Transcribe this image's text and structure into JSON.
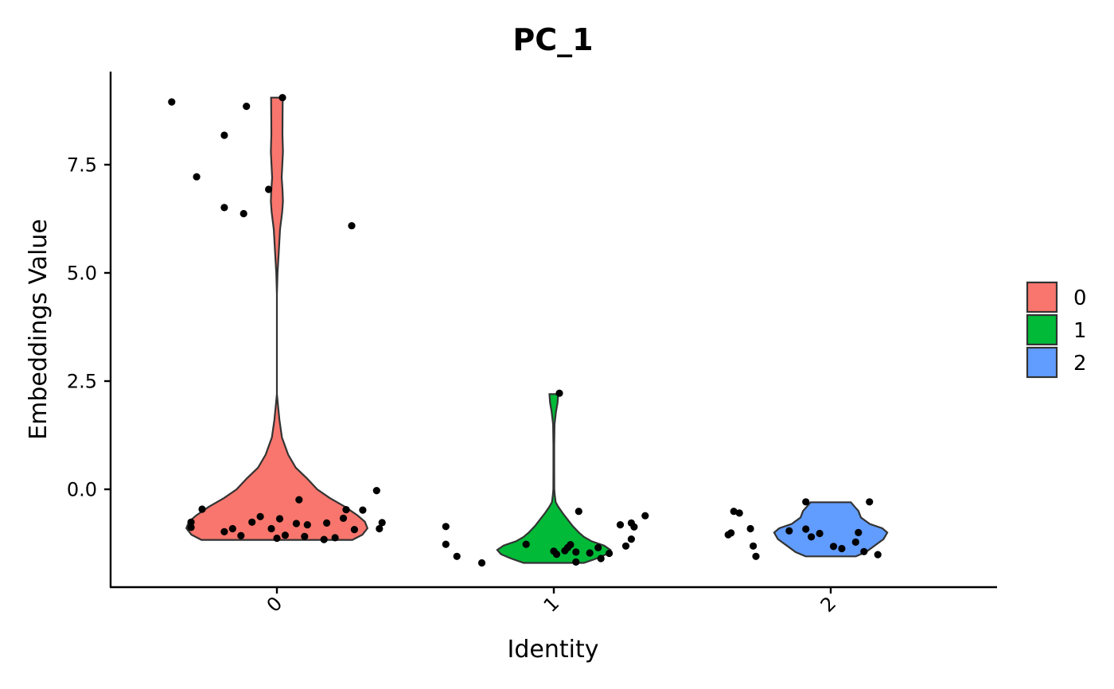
{
  "chart_data": {
    "type": "violin",
    "title": "PC_1",
    "xlabel": "Identity",
    "ylabel": "Embeddings Value",
    "categories": [
      "0",
      "1",
      "2"
    ],
    "ylim": [
      -2.2,
      9.7
    ],
    "yticks": [
      0.0,
      2.5,
      5.0,
      7.5
    ],
    "ytick_labels": [
      "0.0",
      "2.5",
      "5.0",
      "7.5"
    ],
    "grid": false,
    "legend_position": "right",
    "legend": [
      {
        "label": "0",
        "color": "#F8766D"
      },
      {
        "label": "1",
        "color": "#00BA38"
      },
      {
        "label": "2",
        "color": "#619CFF"
      }
    ],
    "series": [
      {
        "category": "0",
        "color": "#F8766D",
        "min": -1.17,
        "max": 9.05,
        "density": [
          [
            -1.17,
            0.6
          ],
          [
            -1.05,
            0.68
          ],
          [
            -0.9,
            0.72
          ],
          [
            -0.75,
            0.7
          ],
          [
            -0.6,
            0.64
          ],
          [
            -0.4,
            0.54
          ],
          [
            -0.2,
            0.42
          ],
          [
            0.0,
            0.32
          ],
          [
            0.25,
            0.24
          ],
          [
            0.5,
            0.15
          ],
          [
            0.8,
            0.09
          ],
          [
            1.2,
            0.04
          ],
          [
            1.6,
            0.02
          ],
          [
            2.2,
            0.0
          ],
          [
            4.5,
            0.0
          ],
          [
            5.0,
            0.005
          ],
          [
            5.5,
            0.015
          ],
          [
            6.0,
            0.025
          ],
          [
            6.4,
            0.042
          ],
          [
            6.65,
            0.048
          ],
          [
            6.9,
            0.045
          ],
          [
            7.2,
            0.038
          ],
          [
            7.5,
            0.043
          ],
          [
            7.8,
            0.048
          ],
          [
            8.2,
            0.044
          ],
          [
            8.6,
            0.045
          ],
          [
            9.05,
            0.046
          ]
        ],
        "points": [
          [
            -0.38,
            8.95
          ],
          [
            -0.19,
            8.18
          ],
          [
            -0.11,
            8.85
          ],
          [
            0.02,
            9.05
          ],
          [
            -0.29,
            7.22
          ],
          [
            -0.03,
            6.93
          ],
          [
            -0.19,
            6.51
          ],
          [
            -0.12,
            6.37
          ],
          [
            0.27,
            6.09
          ],
          [
            0.36,
            -0.03
          ],
          [
            -0.31,
            -0.76
          ],
          [
            -0.31,
            -0.88
          ],
          [
            -0.27,
            -0.46
          ],
          [
            -0.19,
            -0.98
          ],
          [
            -0.16,
            -0.91
          ],
          [
            -0.13,
            -1.07
          ],
          [
            -0.09,
            -0.76
          ],
          [
            -0.06,
            -0.63
          ],
          [
            -0.02,
            -0.91
          ],
          [
            0.0,
            -1.13
          ],
          [
            0.01,
            -0.68
          ],
          [
            0.03,
            -1.06
          ],
          [
            0.07,
            -0.79
          ],
          [
            0.08,
            -0.24
          ],
          [
            0.1,
            -1.09
          ],
          [
            0.11,
            -0.82
          ],
          [
            0.17,
            -1.16
          ],
          [
            0.18,
            -0.78
          ],
          [
            0.21,
            -1.12
          ],
          [
            0.24,
            -0.67
          ],
          [
            0.25,
            -0.47
          ],
          [
            0.28,
            -0.93
          ],
          [
            0.31,
            -0.48
          ],
          [
            0.37,
            -0.91
          ],
          [
            0.38,
            -0.77
          ]
        ]
      },
      {
        "category": "1",
        "color": "#00BA38",
        "min": -1.7,
        "max": 2.2,
        "density": [
          [
            -1.7,
            0.24
          ],
          [
            -1.6,
            0.34
          ],
          [
            -1.5,
            0.42
          ],
          [
            -1.4,
            0.45
          ],
          [
            -1.3,
            0.4
          ],
          [
            -1.2,
            0.3
          ],
          [
            -1.1,
            0.24
          ],
          [
            -1.0,
            0.2
          ],
          [
            -0.85,
            0.15
          ],
          [
            -0.7,
            0.11
          ],
          [
            -0.55,
            0.07
          ],
          [
            -0.4,
            0.035
          ],
          [
            -0.3,
            0.015
          ],
          [
            -0.15,
            0.008
          ],
          [
            0.0,
            0.004
          ],
          [
            0.5,
            0.003
          ],
          [
            1.0,
            0.003
          ],
          [
            1.5,
            0.006
          ],
          [
            1.8,
            0.018
          ],
          [
            2.0,
            0.03
          ],
          [
            2.2,
            0.035
          ]
        ],
        "points": [
          [
            0.02,
            2.22
          ],
          [
            -0.39,
            -0.86
          ],
          [
            -0.39,
            -1.27
          ],
          [
            -0.35,
            -1.55
          ],
          [
            -0.26,
            -1.7
          ],
          [
            -0.1,
            -1.27
          ],
          [
            0.0,
            -1.43
          ],
          [
            0.01,
            -1.5
          ],
          [
            0.04,
            -1.42
          ],
          [
            0.05,
            -1.35
          ],
          [
            0.06,
            -1.28
          ],
          [
            0.08,
            -1.45
          ],
          [
            0.08,
            -1.68
          ],
          [
            0.09,
            -0.51
          ],
          [
            0.13,
            -1.47
          ],
          [
            0.16,
            -1.35
          ],
          [
            0.17,
            -1.6
          ],
          [
            0.2,
            -1.48
          ],
          [
            0.24,
            -0.82
          ],
          [
            0.26,
            -1.31
          ],
          [
            0.28,
            -0.78
          ],
          [
            0.28,
            -1.15
          ],
          [
            0.29,
            -0.87
          ],
          [
            0.33,
            -0.61
          ]
        ]
      },
      {
        "category": "2",
        "color": "#619CFF",
        "min": -1.55,
        "max": -0.3,
        "density": [
          [
            -1.55,
            0.2
          ],
          [
            -1.45,
            0.28
          ],
          [
            -1.3,
            0.35
          ],
          [
            -1.15,
            0.42
          ],
          [
            -1.0,
            0.45
          ],
          [
            -0.9,
            0.41
          ],
          [
            -0.8,
            0.31
          ],
          [
            -0.65,
            0.24
          ],
          [
            -0.5,
            0.22
          ],
          [
            -0.4,
            0.19
          ],
          [
            -0.3,
            0.16
          ]
        ],
        "points": [
          [
            -0.35,
            -0.51
          ],
          [
            -0.33,
            -0.55
          ],
          [
            -0.36,
            -1.01
          ],
          [
            -0.37,
            -1.05
          ],
          [
            -0.29,
            -0.91
          ],
          [
            -0.28,
            -1.31
          ],
          [
            -0.27,
            -1.55
          ],
          [
            -0.15,
            -0.96
          ],
          [
            -0.09,
            -0.29
          ],
          [
            -0.09,
            -0.92
          ],
          [
            -0.07,
            -1.1
          ],
          [
            -0.04,
            -1.02
          ],
          [
            0.01,
            -1.32
          ],
          [
            0.04,
            -1.37
          ],
          [
            0.09,
            -1.22
          ],
          [
            0.1,
            -1.0
          ],
          [
            0.12,
            -1.44
          ],
          [
            0.14,
            -0.29
          ],
          [
            0.17,
            -1.51
          ]
        ]
      }
    ]
  }
}
